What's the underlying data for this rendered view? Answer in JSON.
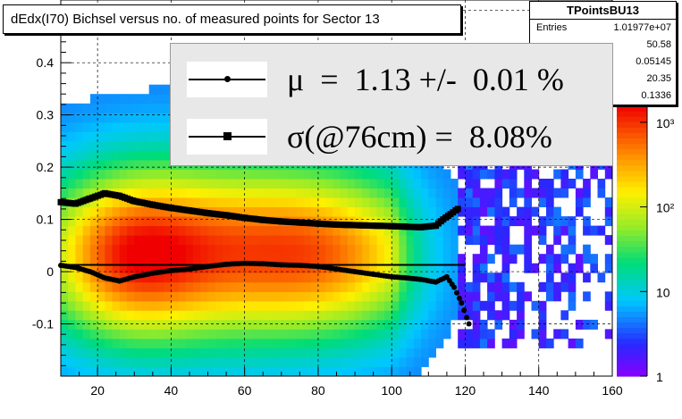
{
  "title": "dEdx(I70) Bichsel versus no. of measured points for Sector 13",
  "stats": {
    "name": "TPointsBU13",
    "rows": [
      {
        "label": "Entries",
        "value": "1.01977e+07"
      },
      {
        "label": "",
        "value": "50.58"
      },
      {
        "label": "",
        "value": "0.05145"
      },
      {
        "label": "",
        "value": "20.35"
      },
      {
        "label": "",
        "value": "0.1336"
      }
    ]
  },
  "fit": {
    "mu_text": "μ  =  1.13 +/-  0.01 %",
    "sigma_text": "σ(@76cm) =  8.08%"
  },
  "colorbar": {
    "labels": [
      "10³",
      "10²",
      "10",
      "1"
    ],
    "log_range": [
      0,
      3.2
    ]
  },
  "chart_data": {
    "type": "heatmap",
    "title": "dEdx(I70) Bichsel versus no. of measured points for Sector 13",
    "xlim": [
      10,
      160
    ],
    "ylim": [
      -0.2,
      0.52
    ],
    "x_ticks": [
      20,
      40,
      60,
      80,
      100,
      120,
      140,
      160
    ],
    "y_ticks": [
      -0.1,
      0,
      0.1,
      0.2,
      0.3,
      0.4,
      0.5
    ],
    "grid": true,
    "colorscale": "rainbow log",
    "series": [
      {
        "marker": "square",
        "points": [
          [
            10,
            0.133
          ],
          [
            14,
            0.13
          ],
          [
            18,
            0.14
          ],
          [
            22,
            0.15
          ],
          [
            26,
            0.145
          ],
          [
            30,
            0.135
          ],
          [
            35,
            0.128
          ],
          [
            40,
            0.122
          ],
          [
            45,
            0.117
          ],
          [
            50,
            0.112
          ],
          [
            55,
            0.108
          ],
          [
            60,
            0.103
          ],
          [
            65,
            0.099
          ],
          [
            70,
            0.096
          ],
          [
            75,
            0.094
          ],
          [
            80,
            0.092
          ],
          [
            85,
            0.09
          ],
          [
            90,
            0.089
          ],
          [
            95,
            0.088
          ],
          [
            100,
            0.087
          ],
          [
            104,
            0.086
          ],
          [
            108,
            0.085
          ],
          [
            112,
            0.088
          ],
          [
            114,
            0.1
          ],
          [
            116,
            0.11
          ],
          [
            118,
            0.12
          ]
        ]
      },
      {
        "marker": "circle",
        "points": [
          [
            10,
            0.012
          ],
          [
            14,
            0.008
          ],
          [
            18,
            0.0
          ],
          [
            22,
            -0.012
          ],
          [
            26,
            -0.018
          ],
          [
            30,
            -0.01
          ],
          [
            35,
            -0.003
          ],
          [
            40,
            0.002
          ],
          [
            45,
            0.005
          ],
          [
            50,
            0.01
          ],
          [
            55,
            0.014
          ],
          [
            60,
            0.016
          ],
          [
            65,
            0.015
          ],
          [
            70,
            0.013
          ],
          [
            75,
            0.012
          ],
          [
            80,
            0.01
          ],
          [
            85,
            0.005
          ],
          [
            90,
            0.0
          ],
          [
            95,
            -0.005
          ],
          [
            100,
            -0.01
          ],
          [
            104,
            -0.012
          ],
          [
            108,
            -0.015
          ],
          [
            112,
            -0.02
          ],
          [
            115,
            -0.01
          ],
          [
            117,
            -0.03
          ],
          [
            119,
            -0.06
          ],
          [
            121,
            -0.1
          ]
        ]
      }
    ],
    "fit_line": {
      "x": [
        10,
        120
      ],
      "y": 0.013
    }
  }
}
